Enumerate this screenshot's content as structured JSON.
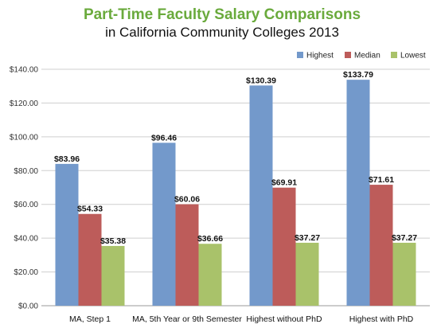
{
  "chart_data": {
    "type": "bar",
    "title": "Part-Time Faculty Salary Comparisons",
    "subtitle": "in California Community Colleges 2013",
    "categories": [
      "MA, Step 1",
      "MA, 5th Year or 9th Semester",
      "Highest without PhD",
      "Highest with PhD"
    ],
    "series": [
      {
        "name": "Highest",
        "values": [
          83.96,
          96.46,
          130.39,
          133.79
        ],
        "labels": [
          "$83.96",
          "$96.46",
          "$130.39",
          "$133.79"
        ],
        "color": "#7399cb"
      },
      {
        "name": "Median",
        "values": [
          54.33,
          60.06,
          69.91,
          71.61
        ],
        "labels": [
          "$54.33",
          "$60.06",
          "$69.91",
          "$71.61"
        ],
        "color": "#bd5c5a"
      },
      {
        "name": "Lowest",
        "values": [
          35.38,
          36.66,
          37.27,
          37.27
        ],
        "labels": [
          "$35.38",
          "$36.66",
          "$37.27",
          "$37.27"
        ],
        "color": "#a9c26a"
      }
    ],
    "yticks": [
      "$0.00",
      "$20.00",
      "$40.00",
      "$60.00",
      "$80.00",
      "$100.00",
      "$120.00",
      "$140.00"
    ],
    "ylim": [
      0,
      140
    ],
    "grid": true,
    "legend": "top-right",
    "title_color": "#6aaa3c"
  }
}
